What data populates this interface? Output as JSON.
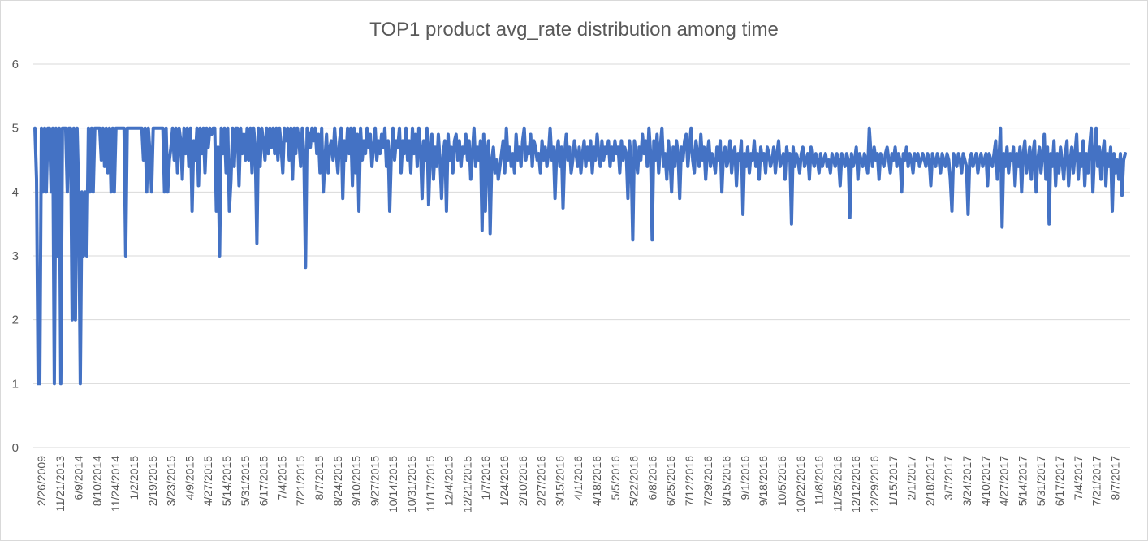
{
  "chart_data": {
    "type": "line",
    "title": "TOP1 product avg_rate distribution among time",
    "xlabel": "",
    "ylabel": "",
    "ylim": [
      0,
      6
    ],
    "y_ticks": [
      "0",
      "1",
      "2",
      "3",
      "4",
      "5",
      "6"
    ],
    "grid": true,
    "legend": "none",
    "x_tick_labels": [
      "2/26/2009",
      "11/21/2013",
      "6/9/2014",
      "8/10/2014",
      "11/24/2014",
      "1/2/2015",
      "2/19/2015",
      "3/23/2015",
      "4/9/2015",
      "4/27/2015",
      "5/14/2015",
      "5/31/2015",
      "6/17/2015",
      "7/4/2015",
      "7/21/2015",
      "8/7/2015",
      "8/24/2015",
      "9/10/2015",
      "9/27/2015",
      "10/14/2015",
      "10/31/2015",
      "11/17/2015",
      "12/4/2015",
      "12/21/2015",
      "1/7/2016",
      "1/24/2016",
      "2/10/2016",
      "2/27/2016",
      "3/15/2016",
      "4/1/2016",
      "4/18/2016",
      "5/5/2016",
      "5/22/2016",
      "6/8/2016",
      "6/25/2016",
      "7/12/2016",
      "7/29/2016",
      "8/15/2016",
      "9/1/2016",
      "9/18/2016",
      "10/5/2016",
      "10/22/2016",
      "11/8/2016",
      "11/25/2016",
      "12/12/2016",
      "12/29/2016",
      "1/15/2017",
      "2/1/2017",
      "2/18/2017",
      "3/7/2017",
      "3/24/2017",
      "4/10/2017",
      "4/27/2017",
      "5/14/2017",
      "5/31/2017",
      "6/17/2017",
      "7/4/2017",
      "7/21/2017",
      "8/7/2017"
    ],
    "series": [
      {
        "color": "#4472c4",
        "values": [
          5,
          4.2,
          1,
          1,
          5,
          4,
          5,
          4,
          5,
          5,
          4,
          5,
          1,
          5,
          3,
          5,
          1,
          5,
          5,
          5,
          4,
          5,
          5,
          2,
          5,
          2,
          5,
          4,
          1,
          4,
          3,
          4,
          3,
          5,
          4,
          5,
          4,
          5,
          5,
          5,
          5,
          4.5,
          5,
          4.4,
          5,
          4.3,
          5,
          4,
          5,
          4,
          5,
          5,
          5,
          5,
          5,
          5,
          3,
          5,
          5,
          5,
          5,
          5,
          5,
          5,
          5,
          5,
          5,
          4.5,
          5,
          4,
          5,
          4.6,
          4,
          5,
          5,
          5,
          5,
          5,
          5,
          5,
          4,
          5,
          4,
          4.5,
          4.7,
          5,
          4.5,
          5,
          4.3,
          5,
          4.8,
          4.2,
          5,
          4.6,
          5,
          4.4,
          5,
          3.7,
          4.8,
          4.5,
          5,
          4.1,
          5,
          4.6,
          5,
          4.3,
          5,
          4.7,
          5,
          4.9,
          5,
          5,
          3.7,
          4.7,
          3,
          5,
          4.6,
          5,
          4.3,
          5,
          3.7,
          4.2,
          5,
          4.4,
          5,
          5,
          4.1,
          5,
          4.6,
          4.9,
          4.5,
          5,
          4.5,
          5,
          4.3,
          5,
          4.7,
          3.2,
          5,
          4.4,
          5,
          4.8,
          4.5,
          5,
          4.6,
          5,
          4.7,
          5,
          4.6,
          5,
          4.5,
          5,
          4.7,
          4.3,
          5,
          4.8,
          5,
          4.5,
          5,
          4.2,
          5,
          4.6,
          5,
          4.8,
          4.4,
          5,
          4.6,
          2.82,
          5,
          4.9,
          4.7,
          5,
          4.8,
          5,
          4.6,
          4.9,
          4.3,
          5,
          4,
          4.5,
          4.9,
          4.3,
          4.7,
          4.8,
          4.5,
          5,
          4.6,
          4.3,
          4.8,
          5,
          3.9,
          4.8,
          4.5,
          5,
          4.6,
          5,
          4.1,
          5,
          4.3,
          4.9,
          3.7,
          5,
          4.5,
          4.8,
          4.6,
          5,
          4.7,
          4.9,
          4.4,
          4.7,
          5,
          4.5,
          4.8,
          4.6,
          4.9,
          4.7,
          5,
          4.4,
          4.8,
          3.7,
          4.6,
          5,
          4.5,
          4.8,
          4.7,
          5,
          4.3,
          4.8,
          4.6,
          5,
          4.5,
          4.8,
          4.3,
          5,
          4.6,
          4.9,
          4.4,
          5,
          4.7,
          3.9,
          4.8,
          4.5,
          5,
          3.8,
          4.6,
          4.9,
          4.2,
          4.7,
          4.4,
          4.9,
          4.5,
          3.9,
          4.6,
          4.8,
          3.7,
          4.9,
          4.5,
          4.7,
          4.3,
          4.8,
          4.9,
          4.5,
          4.8,
          4.4,
          4.7,
          4.6,
          4.9,
          4.5,
          4.8,
          4.2,
          4.6,
          5,
          4.4,
          4.7,
          4.5,
          4.8,
          3.4,
          4.9,
          3.7,
          4.6,
          4.8,
          3.35,
          4.5,
          4.7,
          4.3,
          4.5,
          4.2,
          4.4,
          4.6,
          4.8,
          4.3,
          5,
          4.5,
          4.7,
          4.4,
          4.6,
          4.3,
          4.9,
          4.5,
          4.7,
          4.4,
          4.8,
          5,
          4.5,
          4.7,
          4.6,
          4.9,
          4.4,
          4.8,
          4.7,
          4.5,
          4.6,
          4.3,
          4.8,
          4.5,
          4.7,
          4.4,
          4.6,
          5,
          4.5,
          4.7,
          3.9,
          4.6,
          4.8,
          4.4,
          4.7,
          3.75,
          4.6,
          4.9,
          4.5,
          4.7,
          4.3,
          4.5,
          4.8,
          4.6,
          4.4,
          4.7,
          4.3,
          4.6,
          4.8,
          4.4,
          4.7,
          4.5,
          4.8,
          4.3,
          4.7,
          4.5,
          4.9,
          4.6,
          4.4,
          4.8,
          4.5,
          4.7,
          4.6,
          4.8,
          4.4,
          4.7,
          4.5,
          4.8,
          4.6,
          4.7,
          4.3,
          4.8,
          4.5,
          4.7,
          4.6,
          3.9,
          4.8,
          4.5,
          3.25,
          4.8,
          4.6,
          4.3,
          4.7,
          4.5,
          4.9,
          4.6,
          4.8,
          4.4,
          5,
          4.6,
          3.25,
          4.8,
          4.5,
          4.9,
          4.3,
          4.7,
          5,
          4.4,
          4.6,
          4.2,
          4.8,
          4.5,
          4,
          4.7,
          4.4,
          4.8,
          4.6,
          3.9,
          4.7,
          4.5,
          4.8,
          4.9,
          4.4,
          4.7,
          5,
          4.5,
          4.3,
          4.8,
          4.6,
          4.4,
          4.9,
          4.5,
          4.7,
          4.2,
          4.6,
          4.8,
          4.4,
          4.6,
          4.5,
          4.3,
          4.7,
          4.5,
          4.8,
          4,
          4.6,
          4.7,
          4.4,
          4.5,
          4.8,
          4.3,
          4.6,
          4.7,
          4.1,
          4.6,
          4.5,
          4.8,
          3.65,
          4.6,
          4.4,
          4.7,
          4.3,
          4.6,
          4.5,
          4.8,
          4.4,
          4.6,
          4.2,
          4.7,
          4.5,
          4.6,
          4.3,
          4.7,
          4.6,
          4.4,
          4.5,
          4.7,
          4.3,
          4.6,
          4.8,
          4.4,
          4.5,
          4.6,
          4.2,
          4.7,
          4.5,
          4.6,
          3.5,
          4.7,
          4.4,
          4.6,
          4.5,
          4.3,
          4.6,
          4.7,
          4.4,
          4.5,
          4.6,
          4.2,
          4.7,
          4.5,
          4.4,
          4.6,
          4.5,
          4.3,
          4.6,
          4.4,
          4.5,
          4.6,
          4.4,
          4.5,
          4.3,
          4.6,
          4.5,
          4.4,
          4.6,
          4.5,
          4.1,
          4.6,
          4.5,
          4.4,
          4.6,
          4.5,
          3.6,
          4.6,
          4.4,
          4.5,
          4.7,
          4.2,
          4.6,
          4.5,
          4.4,
          4.6,
          4.5,
          4.3,
          5,
          4.6,
          4.4,
          4.7,
          4.5,
          4.6,
          4.2,
          4.6,
          4.5,
          4.4,
          4.6,
          4.7,
          4.5,
          4.3,
          4.6,
          4.5,
          4.7,
          4.4,
          4.6,
          4.5,
          4,
          4.6,
          4.5,
          4.7,
          4.4,
          4.6,
          4.5,
          4.3,
          4.6,
          4.5,
          4.6,
          4.4,
          4.5,
          4.6,
          4.5,
          4.4,
          4.6,
          4.5,
          4.1,
          4.6,
          4.5,
          4.4,
          4.6,
          4.5,
          4.3,
          4.6,
          4.5,
          4.4,
          4.6,
          4.5,
          4.2,
          3.7,
          4.6,
          4.5,
          4.4,
          4.6,
          4.5,
          4.3,
          4.6,
          4.5,
          4.4,
          3.65,
          4.5,
          4.6,
          4.4,
          4.5,
          4.6,
          4.3,
          4.5,
          4.6,
          4.4,
          4.5,
          4.6,
          4.1,
          4.6,
          4.5,
          4.4,
          4.6,
          4.8,
          4.2,
          4.5,
          5,
          3.45,
          4.6,
          4.4,
          4.7,
          4.3,
          4.6,
          4.5,
          4.7,
          4.1,
          4.6,
          4.4,
          4.7,
          4,
          4.6,
          4.8,
          4.3,
          4.5,
          4.7,
          4.2,
          4.6,
          4.8,
          4,
          4.5,
          4.7,
          4.3,
          4.6,
          4.9,
          4.2,
          4.7,
          3.5,
          4.6,
          4.4,
          4.8,
          4.1,
          4.6,
          4.3,
          4.7,
          4.5,
          4.2,
          4.6,
          4.8,
          4.1,
          4.5,
          4.7,
          4.3,
          4.6,
          4.9,
          4.2,
          4.6,
          4.4,
          4.8,
          4.1,
          4.6,
          4.3,
          4.7,
          5,
          4,
          4.6,
          5,
          4.4,
          4.7,
          4.2,
          4.6,
          4.8,
          4.1,
          4.6,
          4.4,
          4.7,
          3.7,
          4.6,
          4.3,
          4.5,
          4.2,
          4.6,
          3.95,
          4.5,
          4.6
        ]
      }
    ]
  }
}
